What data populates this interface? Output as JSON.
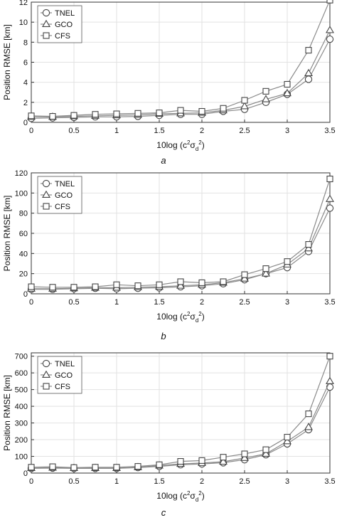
{
  "chart_data": [
    {
      "type": "line",
      "panel_label": "a",
      "xlabel": "10log (c²σd²)",
      "ylabel": "Position RMSE [km]",
      "xlim": [
        0,
        3.5
      ],
      "ylim": [
        0,
        12
      ],
      "xticks": [
        "0",
        "0.5",
        "1",
        "1.5",
        "2",
        "2.5",
        "3",
        "3.5"
      ],
      "yticks": [
        "0",
        "2",
        "4",
        "6",
        "8",
        "10",
        "12"
      ],
      "grid": true,
      "legend": "top-left",
      "x": [
        0,
        0.25,
        0.5,
        0.75,
        1,
        1.25,
        1.5,
        1.75,
        2,
        2.25,
        2.5,
        2.75,
        3,
        3.25,
        3.5
      ],
      "series": [
        {
          "name": "TNEL",
          "marker": "circle",
          "values": [
            0.4,
            0.45,
            0.5,
            0.55,
            0.55,
            0.6,
            0.7,
            0.8,
            0.8,
            1.1,
            1.3,
            2.0,
            2.8,
            4.3,
            8.3
          ]
        },
        {
          "name": "GCO",
          "marker": "triangle",
          "values": [
            0.55,
            0.55,
            0.6,
            0.65,
            0.7,
            0.75,
            0.85,
            0.9,
            0.95,
            1.2,
            1.6,
            2.3,
            2.9,
            4.9,
            9.2
          ]
        },
        {
          "name": "CFS",
          "marker": "square",
          "values": [
            0.65,
            0.6,
            0.7,
            0.8,
            0.85,
            0.9,
            0.95,
            1.2,
            1.1,
            1.4,
            2.2,
            3.1,
            3.8,
            7.2,
            12.2
          ]
        }
      ]
    },
    {
      "type": "line",
      "panel_label": "b",
      "xlabel": "10log (c²σd²)",
      "ylabel": "Position RMSE [km]",
      "xlim": [
        0,
        3.5
      ],
      "ylim": [
        0,
        120
      ],
      "xticks": [
        "0",
        "0.5",
        "1",
        "1.5",
        "2",
        "2.5",
        "3",
        "3.5"
      ],
      "yticks": [
        "0",
        "20",
        "40",
        "60",
        "80",
        "100",
        "120"
      ],
      "grid": true,
      "legend": "top-left",
      "x": [
        0,
        0.25,
        0.5,
        0.75,
        1,
        1.25,
        1.5,
        1.75,
        2,
        2.25,
        2.5,
        2.75,
        3,
        3.25,
        3.5
      ],
      "series": [
        {
          "name": "TNEL",
          "marker": "circle",
          "values": [
            4.5,
            4.5,
            5,
            5.5,
            5,
            5.5,
            6,
            7,
            8,
            10,
            14,
            20,
            26,
            42,
            85
          ]
        },
        {
          "name": "GCO",
          "marker": "triangle",
          "values": [
            5,
            5,
            5.5,
            6,
            6,
            6.5,
            7,
            8,
            9,
            11,
            15,
            20,
            29,
            45,
            94
          ]
        },
        {
          "name": "CFS",
          "marker": "square",
          "values": [
            7,
            6.5,
            6.5,
            7,
            9,
            8,
            9,
            12,
            11,
            12,
            19,
            25,
            32,
            49,
            114
          ]
        }
      ]
    },
    {
      "type": "line",
      "panel_label": "c",
      "xlabel": "10log (c²σd²)",
      "ylabel": "Position RMSE [km]",
      "xlim": [
        0,
        3.5
      ],
      "ylim": [
        0,
        720
      ],
      "xticks": [
        "0",
        "0.5",
        "1",
        "1.5",
        "2",
        "2.5",
        "3",
        "3.5"
      ],
      "yticks": [
        "0",
        "100",
        "200",
        "300",
        "400",
        "500",
        "600",
        "700"
      ],
      "grid": true,
      "legend": "top-left",
      "x": [
        0,
        0.25,
        0.5,
        0.75,
        1,
        1.25,
        1.5,
        1.75,
        2,
        2.25,
        2.5,
        2.75,
        3,
        3.25,
        3.5
      ],
      "series": [
        {
          "name": "TNEL",
          "marker": "circle",
          "values": [
            28,
            30,
            28,
            28,
            28,
            33,
            40,
            50,
            55,
            62,
            80,
            110,
            175,
            260,
            515
          ]
        },
        {
          "name": "GCO",
          "marker": "triangle",
          "values": [
            30,
            32,
            30,
            30,
            30,
            35,
            45,
            55,
            60,
            68,
            90,
            115,
            190,
            275,
            550
          ]
        },
        {
          "name": "CFS",
          "marker": "square",
          "values": [
            35,
            38,
            33,
            35,
            35,
            40,
            50,
            70,
            75,
            95,
            115,
            140,
            215,
            355,
            700
          ]
        }
      ]
    }
  ]
}
